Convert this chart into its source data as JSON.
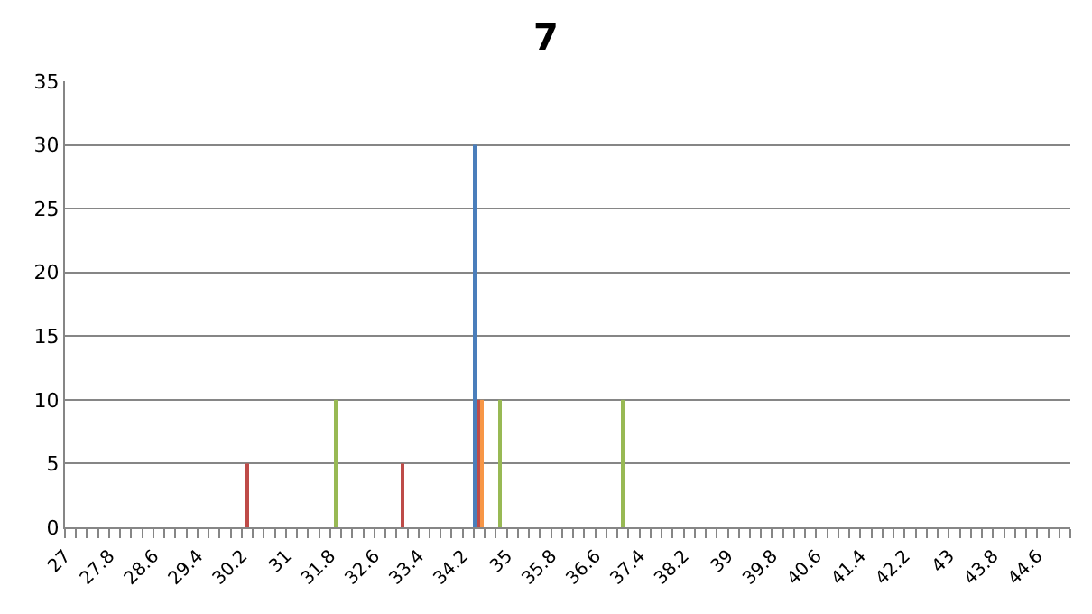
{
  "chart_data": {
    "type": "bar",
    "title": "7",
    "series": [
      {
        "color": "#be4b48",
        "x": [
          30.3,
          33.1,
          34.48
        ],
        "values": [
          5,
          5,
          10
        ]
      },
      {
        "color": "#98b954",
        "x": [
          31.9,
          34.88,
          37.1
        ],
        "values": [
          10,
          10,
          10
        ]
      },
      {
        "color": "#4a7ebb",
        "x": [
          34.42
        ],
        "values": [
          30
        ]
      },
      {
        "color": "#f79646",
        "x": [
          34.54
        ],
        "values": [
          10
        ]
      }
    ],
    "xlim": [
      27,
      45.2
    ],
    "xticks": [
      27,
      {
        "value": 27.2,
        "label": null
      },
      {
        "value": 27.4,
        "label": null
      },
      {
        "value": 27.6,
        "label": null
      },
      27.8,
      {
        "value": 28,
        "label": null
      },
      {
        "value": 28.2,
        "label": null
      },
      {
        "value": 28.4,
        "label": null
      },
      28.6,
      {
        "value": 28.8,
        "label": null
      },
      {
        "value": 29,
        "label": null
      },
      {
        "value": 29.2,
        "label": null
      },
      29.4,
      {
        "value": 29.6,
        "label": null
      },
      {
        "value": 29.8,
        "label": null
      },
      {
        "value": 30,
        "label": null
      },
      30.2,
      {
        "value": 30.4,
        "label": null
      },
      {
        "value": 30.6,
        "label": null
      },
      {
        "value": 30.8,
        "label": null
      },
      31,
      {
        "value": 31.2,
        "label": null
      },
      {
        "value": 31.4,
        "label": null
      },
      {
        "value": 31.6,
        "label": null
      },
      31.8,
      {
        "value": 32,
        "label": null
      },
      {
        "value": 32.2,
        "label": null
      },
      {
        "value": 32.4,
        "label": null
      },
      32.6,
      {
        "value": 32.8,
        "label": null
      },
      {
        "value": 33,
        "label": null
      },
      {
        "value": 33.2,
        "label": null
      },
      33.4,
      {
        "value": 33.6,
        "label": null
      },
      {
        "value": 33.8,
        "label": null
      },
      {
        "value": 34,
        "label": null
      },
      34.2,
      {
        "value": 34.4,
        "label": null
      },
      {
        "value": 34.6,
        "label": null
      },
      {
        "value": 34.8,
        "label": null
      },
      35,
      {
        "value": 35.2,
        "label": null
      },
      {
        "value": 35.4,
        "label": null
      },
      {
        "value": 35.6,
        "label": null
      },
      35.8,
      {
        "value": 36,
        "label": null
      },
      {
        "value": 36.2,
        "label": null
      },
      {
        "value": 36.4,
        "label": null
      },
      36.6,
      {
        "value": 36.8,
        "label": null
      },
      {
        "value": 37,
        "label": null
      },
      {
        "value": 37.2,
        "label": null
      },
      37.4,
      {
        "value": 37.6,
        "label": null
      },
      {
        "value": 37.8,
        "label": null
      },
      {
        "value": 38,
        "label": null
      },
      38.2,
      {
        "value": 38.4,
        "label": null
      },
      {
        "value": 38.6,
        "label": null
      },
      {
        "value": 38.8,
        "label": null
      },
      39,
      {
        "value": 39.2,
        "label": null
      },
      {
        "value": 39.4,
        "label": null
      },
      {
        "value": 39.6,
        "label": null
      },
      39.8,
      {
        "value": 40,
        "label": null
      },
      {
        "value": 40.2,
        "label": null
      },
      {
        "value": 40.4,
        "label": null
      },
      40.6,
      {
        "value": 40.8,
        "label": null
      },
      {
        "value": 41,
        "label": null
      },
      {
        "value": 41.2,
        "label": null
      },
      41.4,
      {
        "value": 41.6,
        "label": null
      },
      {
        "value": 41.8,
        "label": null
      },
      {
        "value": 42,
        "label": null
      },
      42.2,
      {
        "value": 42.4,
        "label": null
      },
      {
        "value": 42.6,
        "label": null
      },
      {
        "value": 42.8,
        "label": null
      },
      43,
      {
        "value": 43.2,
        "label": null
      },
      {
        "value": 43.4,
        "label": null
      },
      {
        "value": 43.6,
        "label": null
      },
      43.8,
      {
        "value": 44,
        "label": null
      },
      {
        "value": 44.2,
        "label": null
      },
      {
        "value": 44.4,
        "label": null
      },
      44.6,
      {
        "value": 44.8,
        "label": null
      },
      {
        "value": 45,
        "label": null
      },
      {
        "value": 45.2,
        "label": null
      }
    ],
    "ylim": [
      0,
      35
    ],
    "yticks": [
      0,
      5,
      10,
      15,
      20,
      25,
      30,
      35
    ],
    "grid": "y"
  }
}
